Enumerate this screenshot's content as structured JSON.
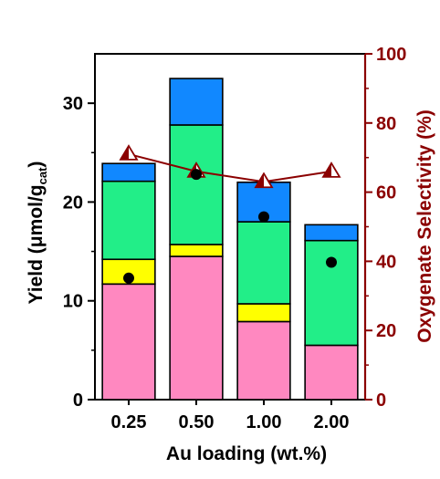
{
  "chart_data": {
    "type": "bar",
    "stacked": true,
    "categories": [
      "0.25",
      "0.50",
      "1.00",
      "2.00"
    ],
    "xlabel": "Au loading (wt.%)",
    "ylabel_left": {
      "main": "Yield (μmol/g",
      "sub": "cat",
      "close": ")"
    },
    "ylabel_right": "Oxygenate Selectivity (%)",
    "ylim_left": [
      0,
      35
    ],
    "yticks_left": [
      0,
      10,
      20,
      30
    ],
    "ylim_right": [
      0,
      100
    ],
    "yticks_right": [
      0,
      20,
      40,
      60,
      80,
      100
    ],
    "grid": false,
    "legend": "none",
    "segment_colors": [
      "#ff88c0",
      "#ffff00",
      "#22ee88",
      "#1188ff"
    ],
    "stack_segments": [
      [
        11.7,
        2.5,
        7.9,
        1.8
      ],
      [
        14.5,
        1.2,
        12.1,
        4.7
      ],
      [
        7.9,
        1.8,
        8.3,
        4.0
      ],
      [
        5.5,
        0.0,
        10.6,
        1.6
      ]
    ],
    "dots_left": [
      12.3,
      22.8,
      18.5,
      13.9
    ],
    "dot_color": "#000000",
    "selectivity_right": [
      71,
      66,
      63,
      66
    ],
    "selectivity_color": "#8b0000",
    "right_axis_color": "#8b0000"
  }
}
